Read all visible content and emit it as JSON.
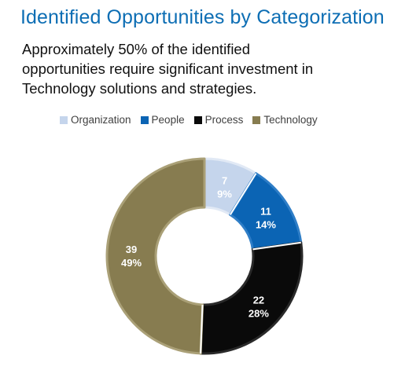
{
  "header": {
    "title": "Identified Opportunities by Categorization",
    "subtitle_lines": [
      "Approximately 50% of the identified",
      "opportunities  require significant investment in",
      "Technology solutions and strategies."
    ]
  },
  "colors": {
    "title": "#0d6eb4",
    "Organization": "#c5d5ec",
    "People": "#0b64b4",
    "Process": "#0a0a0a",
    "Technology": "#877c50",
    "Technology_border": "#aaa077",
    "Organization_border": "#e1e9f5",
    "People_border": "#2f7ec7",
    "Process_border": "#2a2a2a"
  },
  "chart_data": {
    "type": "pie",
    "style": "donut",
    "categories": [
      "Organization",
      "People",
      "Process",
      "Technology"
    ],
    "values": [
      7,
      11,
      22,
      39
    ],
    "percent_labels": [
      "9%",
      "14%",
      "28%",
      "49%"
    ],
    "legend": {
      "placement": "top",
      "entries": [
        "Organization",
        "People",
        "Process",
        "Technology"
      ]
    }
  }
}
